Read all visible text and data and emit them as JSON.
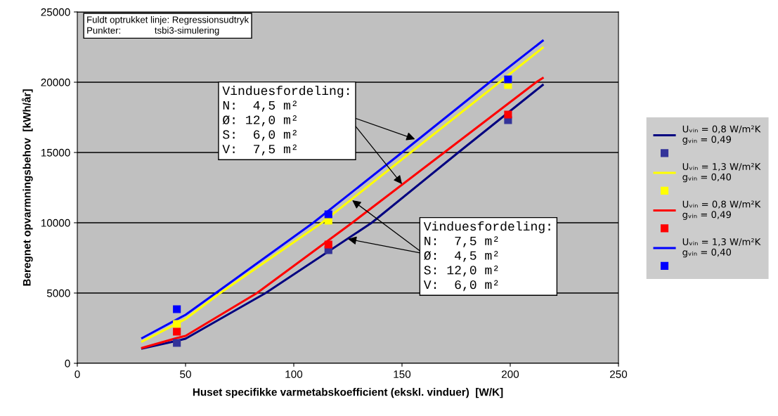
{
  "chart_data": {
    "type": "line",
    "xlabel": "Huset specifikke varmetabskoefficient (ekskl. vinduer)  [W/K]",
    "ylabel": "Beregnet opvarmningsbehov  [kWh/år]",
    "xlim": [
      0,
      250
    ],
    "xticks": [
      0,
      50,
      100,
      150,
      200,
      250
    ],
    "ylim": [
      0,
      25000
    ],
    "yticks": [
      0,
      5000,
      10000,
      15000,
      20000,
      25000
    ],
    "grid": "y",
    "legend": "right",
    "annotations": [
      "Fuldt optrukket linje: Regressionsudtryk\nPunkter:             tsbi3-simulering",
      {
        "text": "Vinduesfordeling:\nN:  4,5 m²\nØ: 12,0 m²\nS:  6,0 m²\nV:  7,5 m²",
        "x": 156,
        "y": 15950
      },
      {
        "text": "Vinduesfordeling:\nN:  7,5 m²\nØ:  4,5 m²\nS: 12,0 m²\nV:  6,0 m²",
        "x": 127,
        "y": 11600
      }
    ],
    "series": [
      {
        "name": "Uᵥᵢₙ = 0,8 W/m²K\ngᵥᵢₙ = 0,49",
        "color": "#000080",
        "x": [
          30,
          46,
          50,
          87,
          136,
          176,
          215
        ],
        "values": [
          1050,
          1600,
          1750,
          5000,
          10000,
          15000,
          19800
        ]
      },
      {
        "type": "scatter",
        "marker": "square",
        "color": "#333399",
        "x": [
          46,
          116,
          199
        ],
        "values": [
          1450,
          8050,
          17300
        ]
      },
      {
        "name": "Uᵥᵢₙ = 1,3 W/m²K\ngᵥᵢₙ = 0,40",
        "color": "#ffff00",
        "x": [
          30,
          50,
          66,
          113,
          154,
          195,
          215
        ],
        "values": [
          1550,
          3150,
          5000,
          10000,
          15000,
          20000,
          22450
        ]
      },
      {
        "type": "scatter",
        "marker": "square",
        "color": "#ffff00",
        "x": [
          46,
          116,
          199
        ],
        "values": [
          2800,
          10150,
          19800
        ]
      },
      {
        "name": "Uᵥᵢₙ = 0,8 W/m²K\ngᵥᵢₙ = 0,49",
        "color": "#ff0000",
        "x": [
          30,
          46,
          50,
          83,
          127,
          169.5,
          212,
          215
        ],
        "values": [
          1100,
          1800,
          1950,
          5000,
          10000,
          15000,
          20000,
          20300
        ]
      },
      {
        "type": "scatter",
        "marker": "square",
        "color": "#ff0000",
        "x": [
          46,
          116,
          199
        ],
        "values": [
          2250,
          8450,
          17700
        ]
      },
      {
        "name": "Uᵥᵢₙ = 1,3 W/m²K\ngᵥᵢₙ = 0,40",
        "color": "#0000ff",
        "x": [
          30,
          50,
          64,
          109,
          150,
          190.5,
          215
        ],
        "values": [
          1800,
          3450,
          5000,
          10000,
          15000,
          20000,
          22950
        ]
      },
      {
        "type": "scatter",
        "marker": "square",
        "color": "#0000ff",
        "x": [
          46,
          116,
          199
        ],
        "values": [
          3850,
          10600,
          20200
        ]
      }
    ]
  }
}
